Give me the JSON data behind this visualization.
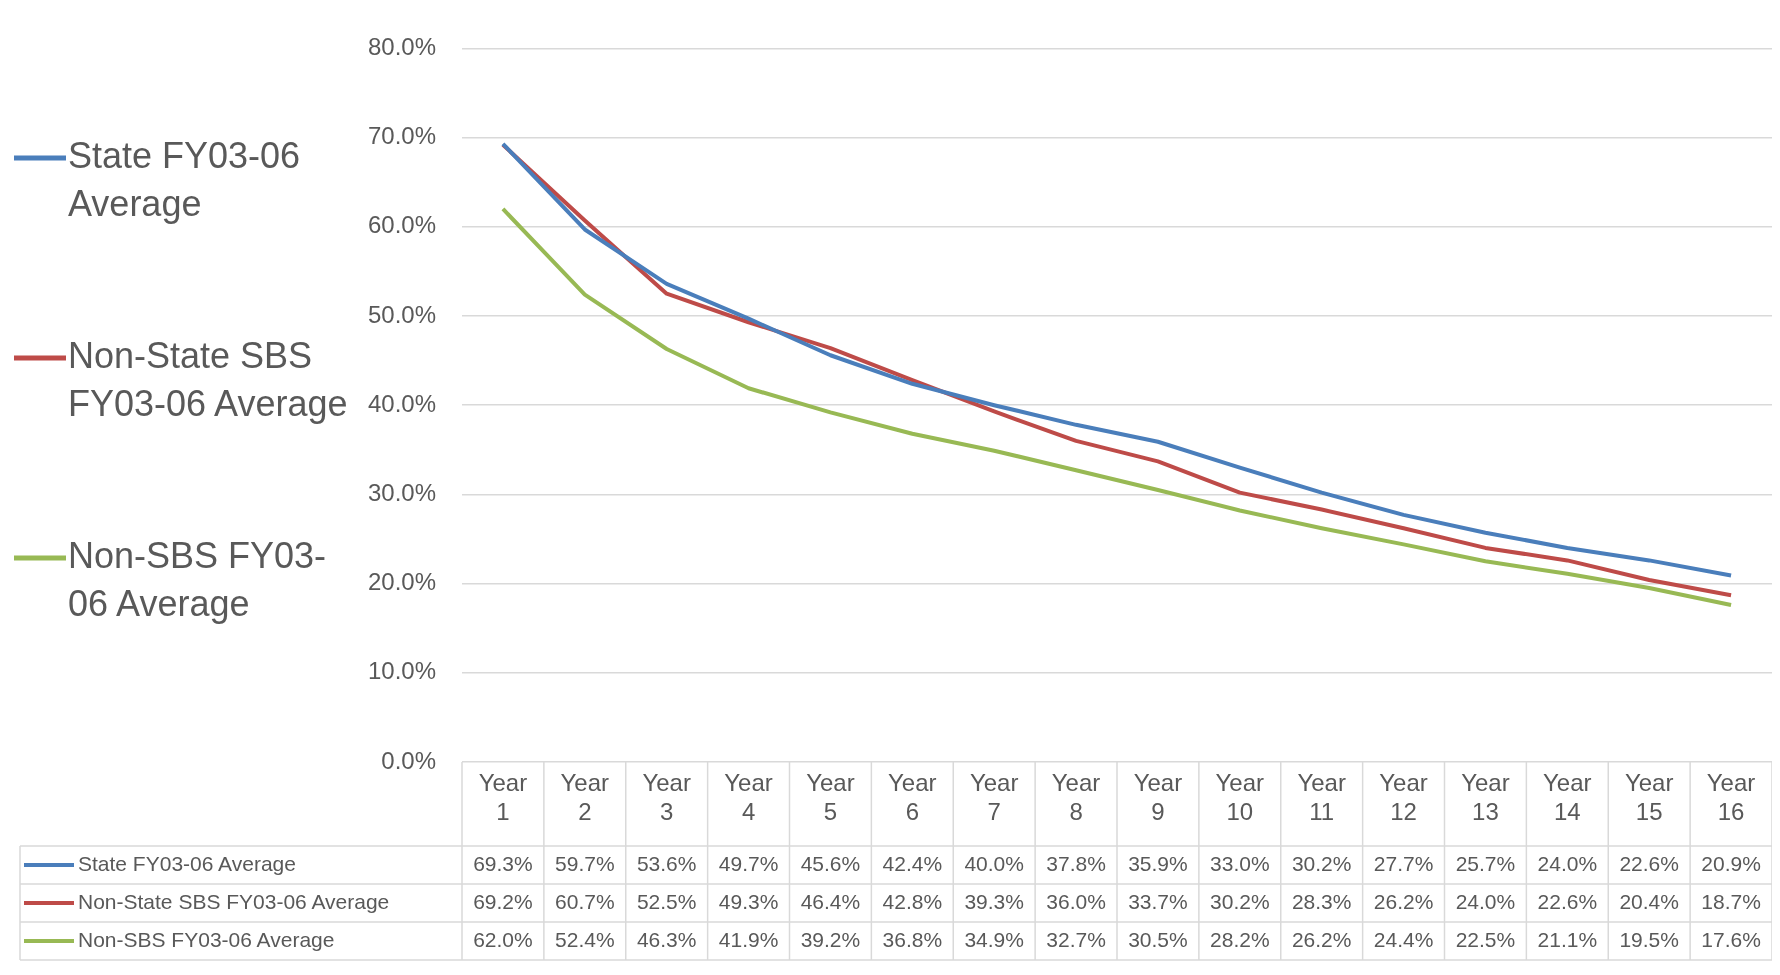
{
  "chart_data": {
    "type": "line",
    "categories": [
      "Year 1",
      "Year 2",
      "Year 3",
      "Year 4",
      "Year 5",
      "Year 6",
      "Year 7",
      "Year 8",
      "Year 9",
      "Year 10",
      "Year 11",
      "Year 12",
      "Year 13",
      "Year 14",
      "Year 15",
      "Year 16"
    ],
    "series": [
      {
        "name": "State FY03-06 Average",
        "color": "#4a7ebb",
        "values": [
          69.3,
          59.7,
          53.6,
          49.7,
          45.6,
          42.4,
          40.0,
          37.8,
          35.9,
          33.0,
          30.2,
          27.7,
          25.7,
          24.0,
          22.6,
          20.9
        ],
        "value_labels": [
          "69.3%",
          "59.7%",
          "53.6%",
          "49.7%",
          "45.6%",
          "42.4%",
          "40.0%",
          "37.8%",
          "35.9%",
          "33.0%",
          "30.2%",
          "27.7%",
          "25.7%",
          "24.0%",
          "22.6%",
          "20.9%"
        ]
      },
      {
        "name": "Non-State SBS FY03-06 Average",
        "color": "#be4b48",
        "values": [
          69.2,
          60.7,
          52.5,
          49.3,
          46.4,
          42.8,
          39.3,
          36.0,
          33.7,
          30.2,
          28.3,
          26.2,
          24.0,
          22.6,
          20.4,
          18.7
        ],
        "value_labels": [
          "69.2%",
          "60.7%",
          "52.5%",
          "49.3%",
          "46.4%",
          "42.8%",
          "39.3%",
          "36.0%",
          "33.7%",
          "30.2%",
          "28.3%",
          "26.2%",
          "24.0%",
          "22.6%",
          "20.4%",
          "18.7%"
        ]
      },
      {
        "name": "Non-SBS FY03-06 Average",
        "color": "#98b954",
        "values": [
          62.0,
          52.4,
          46.3,
          41.9,
          39.2,
          36.8,
          34.9,
          32.7,
          30.5,
          28.2,
          26.2,
          24.4,
          22.5,
          21.1,
          19.5,
          17.6
        ],
        "value_labels": [
          "62.0%",
          "52.4%",
          "46.3%",
          "41.9%",
          "39.2%",
          "36.8%",
          "34.9%",
          "32.7%",
          "30.5%",
          "28.2%",
          "26.2%",
          "24.4%",
          "22.5%",
          "21.1%",
          "19.5%",
          "17.6%"
        ]
      }
    ],
    "ylim": [
      0,
      80
    ],
    "yticks": [
      {
        "value": 0,
        "label": "0.0%"
      },
      {
        "value": 10,
        "label": "10.0%"
      },
      {
        "value": 20,
        "label": "20.0%"
      },
      {
        "value": 30,
        "label": "30.0%"
      },
      {
        "value": 40,
        "label": "40.0%"
      },
      {
        "value": 50,
        "label": "50.0%"
      },
      {
        "value": 60,
        "label": "60.0%"
      },
      {
        "value": 70,
        "label": "70.0%"
      },
      {
        "value": 80,
        "label": "80.0%"
      }
    ],
    "grid": "y",
    "legend": "left",
    "marker": "none",
    "line_style": "solid"
  }
}
